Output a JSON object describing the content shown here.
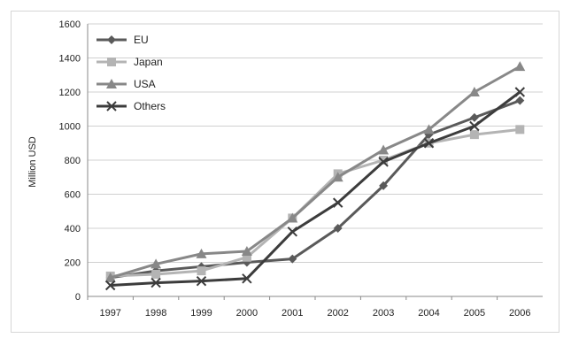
{
  "chart_data": {
    "type": "line",
    "ylabel": "Million USD",
    "ylim": [
      0,
      1600
    ],
    "yticks": [
      0,
      200,
      400,
      600,
      800,
      1000,
      1200,
      1400,
      1600
    ],
    "grid": true,
    "legend_position": "top-left",
    "categories": [
      "1997",
      "1998",
      "1999",
      "2000",
      "2001",
      "2002",
      "2003",
      "2004",
      "2005",
      "2006"
    ],
    "series": [
      {
        "name": "EU",
        "color": "#5a5a5a",
        "marker": "diamond",
        "values": [
          110,
          150,
          175,
          200,
          220,
          400,
          650,
          950,
          1050,
          1150
        ]
      },
      {
        "name": "Japan",
        "color": "#b4b4b4",
        "marker": "square",
        "values": [
          120,
          130,
          150,
          230,
          460,
          720,
          800,
          900,
          950,
          980
        ]
      },
      {
        "name": "USA",
        "color": "#888888",
        "marker": "triangle",
        "values": [
          110,
          190,
          250,
          265,
          460,
          700,
          860,
          980,
          1200,
          1350
        ]
      },
      {
        "name": "Others",
        "color": "#3c3c3c",
        "marker": "x",
        "values": [
          65,
          80,
          90,
          105,
          380,
          550,
          790,
          900,
          1000,
          1200
        ]
      }
    ]
  }
}
